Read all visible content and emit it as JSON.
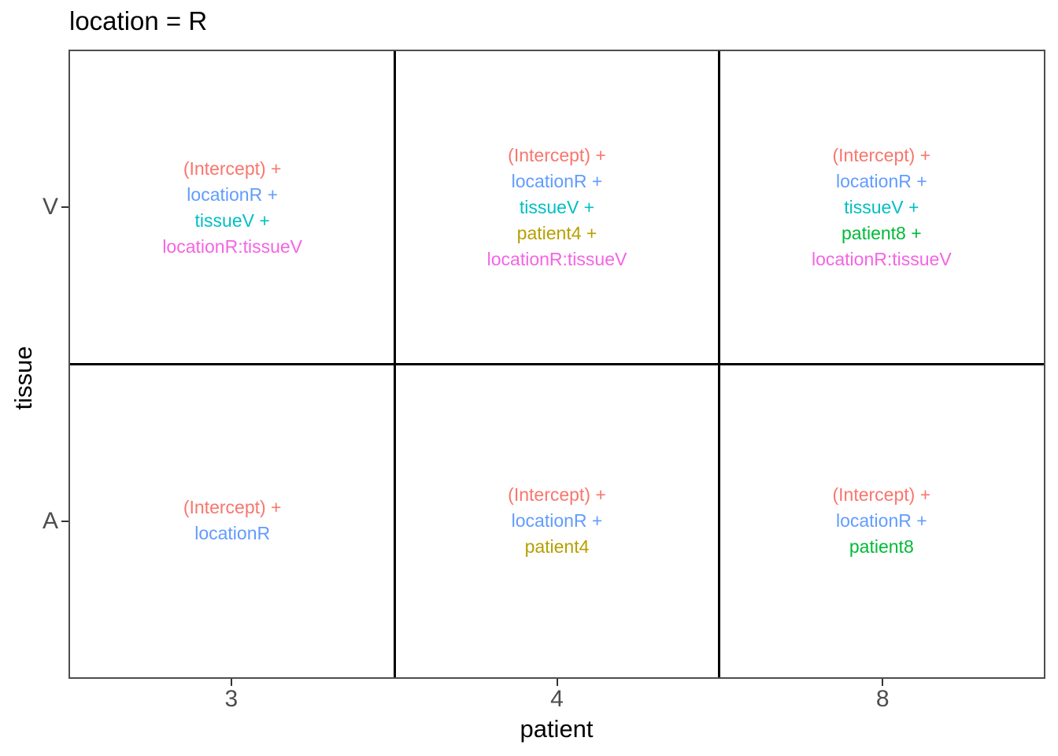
{
  "chart_data": {
    "type": "table",
    "title": "location = R",
    "xlabel": "patient",
    "ylabel": "tissue",
    "x_ticks": [
      "3",
      "4",
      "8"
    ],
    "y_ticks": [
      "V",
      "A"
    ],
    "facet_row_variable": "tissue",
    "facet_col_variable": "patient",
    "legend_position": "none",
    "grid": "off",
    "colors": {
      "intercept": "#F8766D",
      "locationR": "#619CFF",
      "tissueV": "#00BFC4",
      "patient4": "#B79F00",
      "patient8": "#00BA38",
      "locationR_tissueV": "#F564E3",
      "axis_text": "#4D4D4D",
      "panel_border": "#4D4D4D",
      "facet_divider": "#000000",
      "title_text": "#000000"
    },
    "cells": [
      {
        "tissue": "V",
        "patient": "3",
        "terms": [
          {
            "text": "(Intercept) +",
            "color": "#F8766D"
          },
          {
            "text": "locationR +",
            "color": "#619CFF"
          },
          {
            "text": "tissueV +",
            "color": "#00BFC4"
          },
          {
            "text": "locationR:tissueV",
            "color": "#F564E3"
          }
        ]
      },
      {
        "tissue": "V",
        "patient": "4",
        "terms": [
          {
            "text": "(Intercept) +",
            "color": "#F8766D"
          },
          {
            "text": "locationR +",
            "color": "#619CFF"
          },
          {
            "text": "tissueV +",
            "color": "#00BFC4"
          },
          {
            "text": "patient4 +",
            "color": "#B79F00"
          },
          {
            "text": "locationR:tissueV",
            "color": "#F564E3"
          }
        ]
      },
      {
        "tissue": "V",
        "patient": "8",
        "terms": [
          {
            "text": "(Intercept) +",
            "color": "#F8766D"
          },
          {
            "text": "locationR +",
            "color": "#619CFF"
          },
          {
            "text": "tissueV +",
            "color": "#00BFC4"
          },
          {
            "text": "patient8 +",
            "color": "#00BA38"
          },
          {
            "text": "locationR:tissueV",
            "color": "#F564E3"
          }
        ]
      },
      {
        "tissue": "A",
        "patient": "3",
        "terms": [
          {
            "text": "(Intercept) +",
            "color": "#F8766D"
          },
          {
            "text": "locationR",
            "color": "#619CFF"
          }
        ]
      },
      {
        "tissue": "A",
        "patient": "4",
        "terms": [
          {
            "text": "(Intercept) +",
            "color": "#F8766D"
          },
          {
            "text": "locationR +",
            "color": "#619CFF"
          },
          {
            "text": "patient4",
            "color": "#B79F00"
          }
        ]
      },
      {
        "tissue": "A",
        "patient": "8",
        "terms": [
          {
            "text": "(Intercept) +",
            "color": "#F8766D"
          },
          {
            "text": "locationR +",
            "color": "#619CFF"
          },
          {
            "text": "patient8",
            "color": "#00BA38"
          }
        ]
      }
    ]
  }
}
